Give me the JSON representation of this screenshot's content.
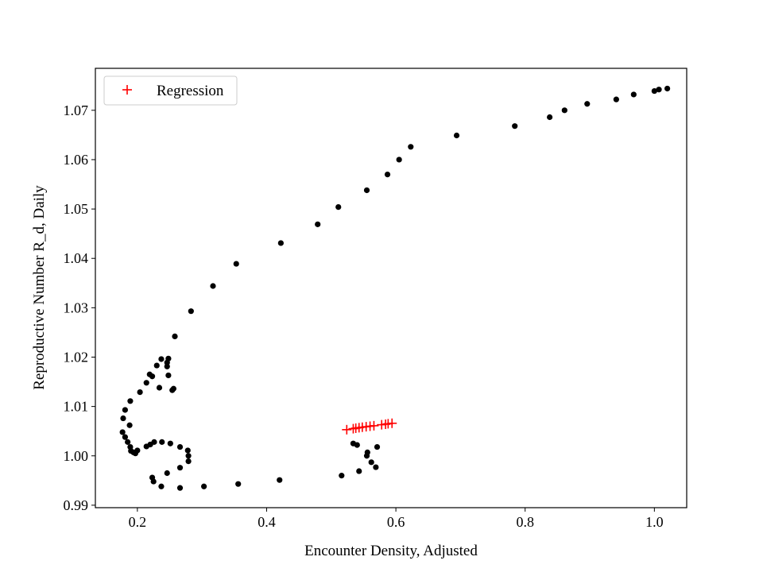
{
  "chart_data": {
    "type": "scatter",
    "xlabel": "Encounter Density, Adjusted",
    "ylabel": "Reproductive Number R_d, Daily",
    "xlim": [
      0.135,
      1.05
    ],
    "ylim": [
      0.9895,
      1.0785
    ],
    "xticks": [
      0.2,
      0.4,
      0.6,
      0.8,
      1.0
    ],
    "xtick_labels": [
      "0.2",
      "0.4",
      "0.6",
      "0.8",
      "1.0"
    ],
    "yticks": [
      0.99,
      1.0,
      1.01,
      1.02,
      1.03,
      1.04,
      1.05,
      1.06,
      1.07
    ],
    "ytick_labels": [
      "0.99",
      "1.00",
      "1.01",
      "1.02",
      "1.03",
      "1.04",
      "1.05",
      "1.06",
      "1.07"
    ],
    "grid": false,
    "legend_position": "top-left",
    "series": [
      {
        "marker": "dot",
        "color": "#000000",
        "points": [
          [
            0.178,
            1.0076
          ],
          [
            0.181,
            1.0093
          ],
          [
            0.189,
            1.0111
          ],
          [
            0.204,
            1.0129
          ],
          [
            0.214,
            1.0148
          ],
          [
            0.219,
            1.0165
          ],
          [
            0.223,
            1.0161
          ],
          [
            0.23,
            1.0183
          ],
          [
            0.237,
            1.0196
          ],
          [
            0.248,
            1.0197
          ],
          [
            0.246,
            1.0189
          ],
          [
            0.246,
            1.0181
          ],
          [
            0.248,
            1.0163
          ],
          [
            0.254,
            1.0133
          ],
          [
            0.256,
            1.0136
          ],
          [
            0.234,
            1.0138
          ],
          [
            0.258,
            1.0242
          ],
          [
            0.283,
            1.0293
          ],
          [
            0.317,
            1.0344
          ],
          [
            0.353,
            1.0389
          ],
          [
            0.422,
            1.0431
          ],
          [
            0.479,
            1.0469
          ],
          [
            0.511,
            1.0504
          ],
          [
            0.555,
            1.0538
          ],
          [
            0.587,
            1.057
          ],
          [
            0.605,
            1.06
          ],
          [
            0.623,
            1.0626
          ],
          [
            0.694,
            1.0649
          ],
          [
            0.784,
            1.0668
          ],
          [
            0.838,
            1.0686
          ],
          [
            0.861,
            1.07
          ],
          [
            0.896,
            1.0713
          ],
          [
            0.941,
            1.0722
          ],
          [
            0.968,
            1.0732
          ],
          [
            1.0,
            1.0739
          ],
          [
            1.007,
            1.0742
          ],
          [
            1.02,
            1.0744
          ],
          [
            0.177,
            1.0048
          ],
          [
            0.181,
            1.0038
          ],
          [
            0.185,
            1.0028
          ],
          [
            0.188,
            1.0062
          ],
          [
            0.189,
            1.0018
          ],
          [
            0.19,
            1.001
          ],
          [
            0.194,
            1.0007
          ],
          [
            0.197,
            1.0005
          ],
          [
            0.2,
            1.0011
          ],
          [
            0.214,
            1.0019
          ],
          [
            0.22,
            1.0023
          ],
          [
            0.226,
            1.0028
          ],
          [
            0.238,
            1.0028
          ],
          [
            0.251,
            1.0025
          ],
          [
            0.266,
            1.0018
          ],
          [
            0.278,
            1.0011
          ],
          [
            0.279,
            1.0
          ],
          [
            0.279,
            0.9989
          ],
          [
            0.266,
            0.9976
          ],
          [
            0.246,
            0.9965
          ],
          [
            0.223,
            0.9956
          ],
          [
            0.225,
            0.9948
          ],
          [
            0.237,
            0.9938
          ],
          [
            0.266,
            0.9935
          ],
          [
            0.303,
            0.9938
          ],
          [
            0.356,
            0.9943
          ],
          [
            0.42,
            0.9951
          ],
          [
            0.516,
            0.996
          ],
          [
            0.543,
            0.9969
          ],
          [
            0.534,
            1.0025
          ],
          [
            0.54,
            1.0022
          ],
          [
            0.556,
            1.0007
          ],
          [
            0.555,
            1.0
          ],
          [
            0.562,
            0.9987
          ],
          [
            0.569,
            0.9977
          ],
          [
            0.571,
            1.0018
          ]
        ]
      },
      {
        "name": "Regression",
        "marker": "plus",
        "color": "#ff0000",
        "points": [
          [
            0.524,
            1.0053
          ],
          [
            0.534,
            1.0055
          ],
          [
            0.538,
            1.0056
          ],
          [
            0.543,
            1.0057
          ],
          [
            0.548,
            1.0058
          ],
          [
            0.554,
            1.0059
          ],
          [
            0.56,
            1.006
          ],
          [
            0.566,
            1.0061
          ],
          [
            0.578,
            1.0063
          ],
          [
            0.584,
            1.0064
          ],
          [
            0.588,
            1.0065
          ],
          [
            0.594,
            1.0066
          ]
        ]
      }
    ]
  }
}
